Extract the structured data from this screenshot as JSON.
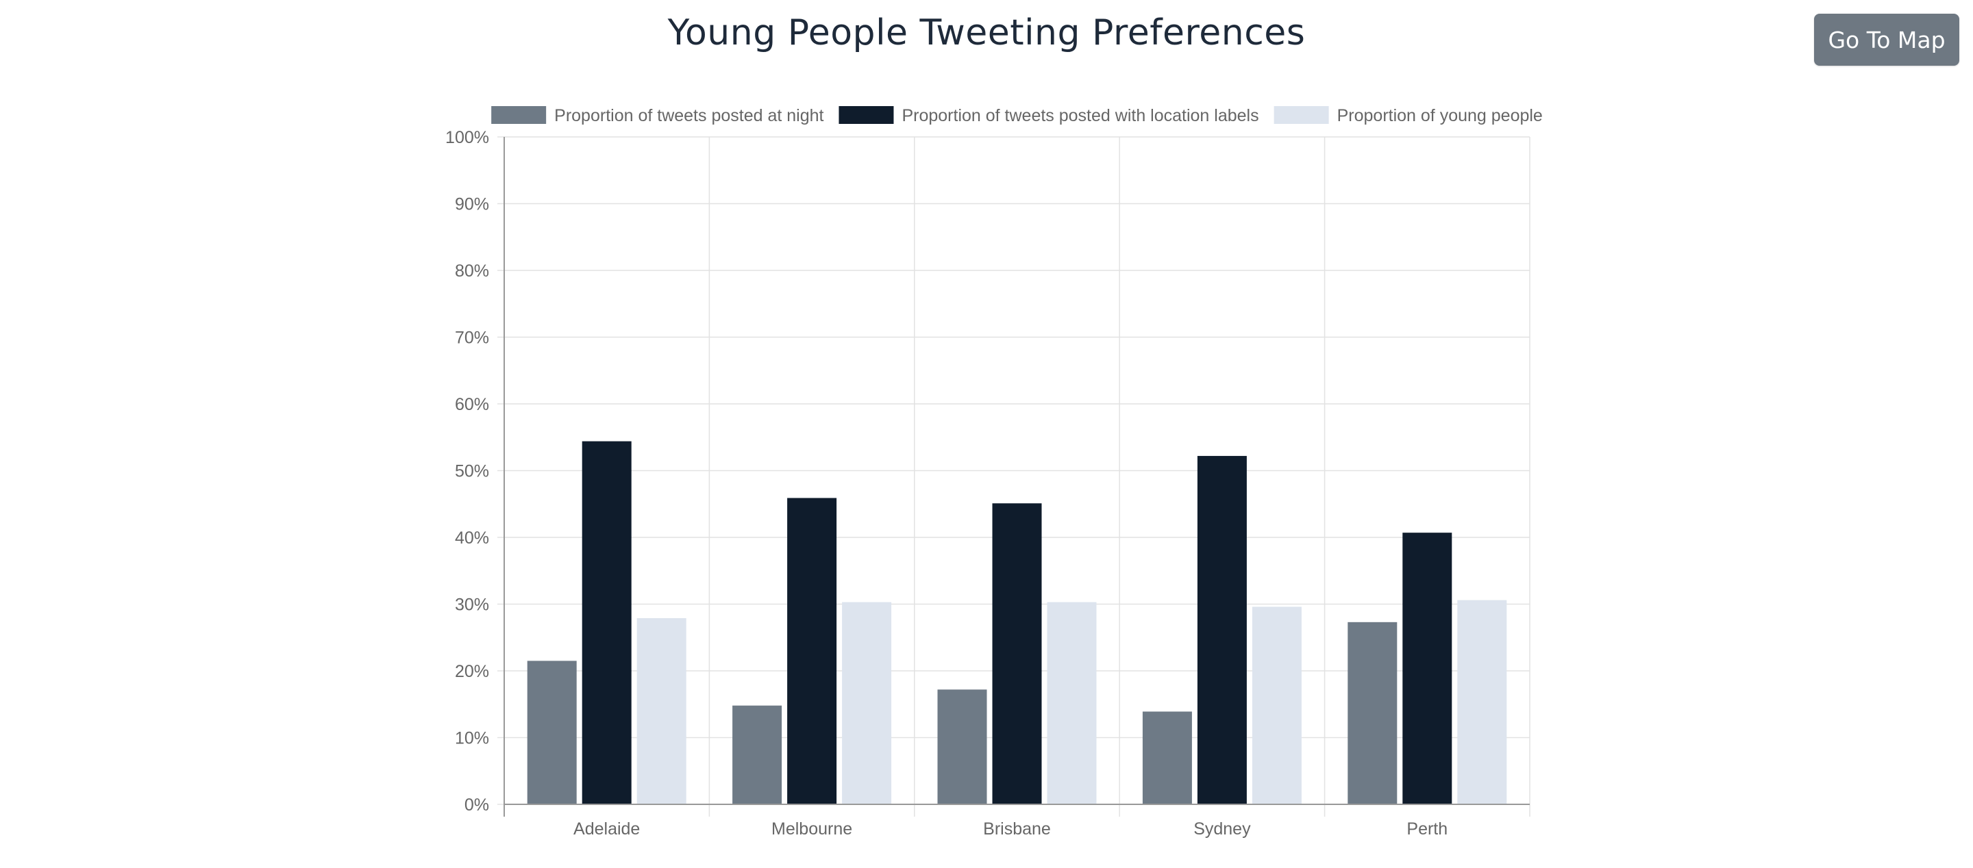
{
  "page": {
    "title": "Young People Tweeting Preferences",
    "button_label": "Go To Map"
  },
  "colors": {
    "night": "#6e7a86",
    "location": "#0f1c2c",
    "young": "#dde4ee",
    "grid": "#e2e2e2",
    "axis": "#999999",
    "title": "#1e2a3a",
    "button_bg": "#6e7882"
  },
  "chart_data": {
    "type": "bar",
    "title": "Young People Tweeting Preferences",
    "xlabel": "",
    "ylabel": "",
    "categories": [
      "Adelaide",
      "Melbourne",
      "Brisbane",
      "Sydney",
      "Perth"
    ],
    "series": [
      {
        "name": "Proportion of tweets posted at night",
        "values": [
          21.5,
          14.8,
          17.2,
          13.9,
          27.3
        ]
      },
      {
        "name": "Proportion of tweets posted with location labels",
        "values": [
          54.4,
          45.9,
          45.1,
          52.2,
          40.7
        ]
      },
      {
        "name": "Proportion of young people",
        "values": [
          27.9,
          30.3,
          30.3,
          29.6,
          30.6
        ]
      }
    ],
    "ylim": [
      0,
      100
    ],
    "yticks": [
      "0%",
      "10%",
      "20%",
      "30%",
      "40%",
      "50%",
      "60%",
      "70%",
      "80%",
      "90%",
      "100%"
    ],
    "legend_position": "top",
    "grid": true
  }
}
